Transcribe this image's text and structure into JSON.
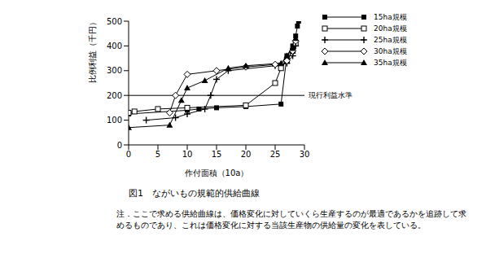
{
  "chart_data": {
    "type": "line",
    "caption": "図1　ながいもの規範的供給曲線",
    "note": "注．ここで求める供給曲線は、価格変化に対していくら生産するのが最適であるかを追跡して求めるものであり、これは価格変化に対する当該生産物の供給量の変化を表している。",
    "x_label": "作付面積（10a）",
    "y_label": "比例利益（千円）",
    "xlim": [
      0,
      30
    ],
    "xticks": [
      0,
      5,
      10,
      15,
      20,
      25,
      30
    ],
    "ylim": [
      0,
      500
    ],
    "yticks": [
      0,
      100,
      200,
      300,
      400,
      500
    ],
    "grid": false,
    "legend": "upper right",
    "reference_line": {
      "value": 200,
      "label": "現行利益水準"
    },
    "series": [
      {
        "name": "15ha規模",
        "color": "#000000",
        "marker": "square",
        "x": [
          0,
          10,
          12,
          15,
          20,
          26,
          27,
          28,
          28.5,
          28.8,
          29
        ],
        "values": [
          125,
          140,
          145,
          150,
          155,
          165,
          360,
          400,
          440,
          480,
          500
        ]
      },
      {
        "name": "20ha規模",
        "color": "#000000",
        "marker": "square-open",
        "x": [
          0,
          1,
          5,
          10,
          20,
          25,
          26,
          27,
          28,
          28.5
        ],
        "values": [
          130,
          135,
          145,
          150,
          160,
          250,
          310,
          340,
          380,
          410
        ]
      },
      {
        "name": "25ha規模",
        "color": "#000000",
        "marker": "plus",
        "x": [
          3,
          8,
          10,
          13,
          14,
          15,
          17,
          25,
          27,
          28,
          28.5
        ],
        "values": [
          100,
          110,
          125,
          145,
          200,
          265,
          300,
          320,
          330,
          360,
          400
        ]
      },
      {
        "name": "30ha規模",
        "color": "#000000",
        "marker": "diamond-open",
        "x": [
          7,
          8,
          10,
          15,
          20,
          25,
          27,
          28,
          28.5
        ],
        "values": [
          130,
          200,
          285,
          300,
          315,
          325,
          340,
          380,
          420
        ]
      },
      {
        "name": "35ha規模",
        "color": "#000000",
        "marker": "triangle",
        "x": [
          0,
          7,
          9,
          10,
          13,
          17,
          20,
          26,
          27,
          28,
          28.5
        ],
        "values": [
          70,
          80,
          180,
          230,
          260,
          310,
          320,
          330,
          360,
          390,
          430
        ]
      }
    ]
  }
}
